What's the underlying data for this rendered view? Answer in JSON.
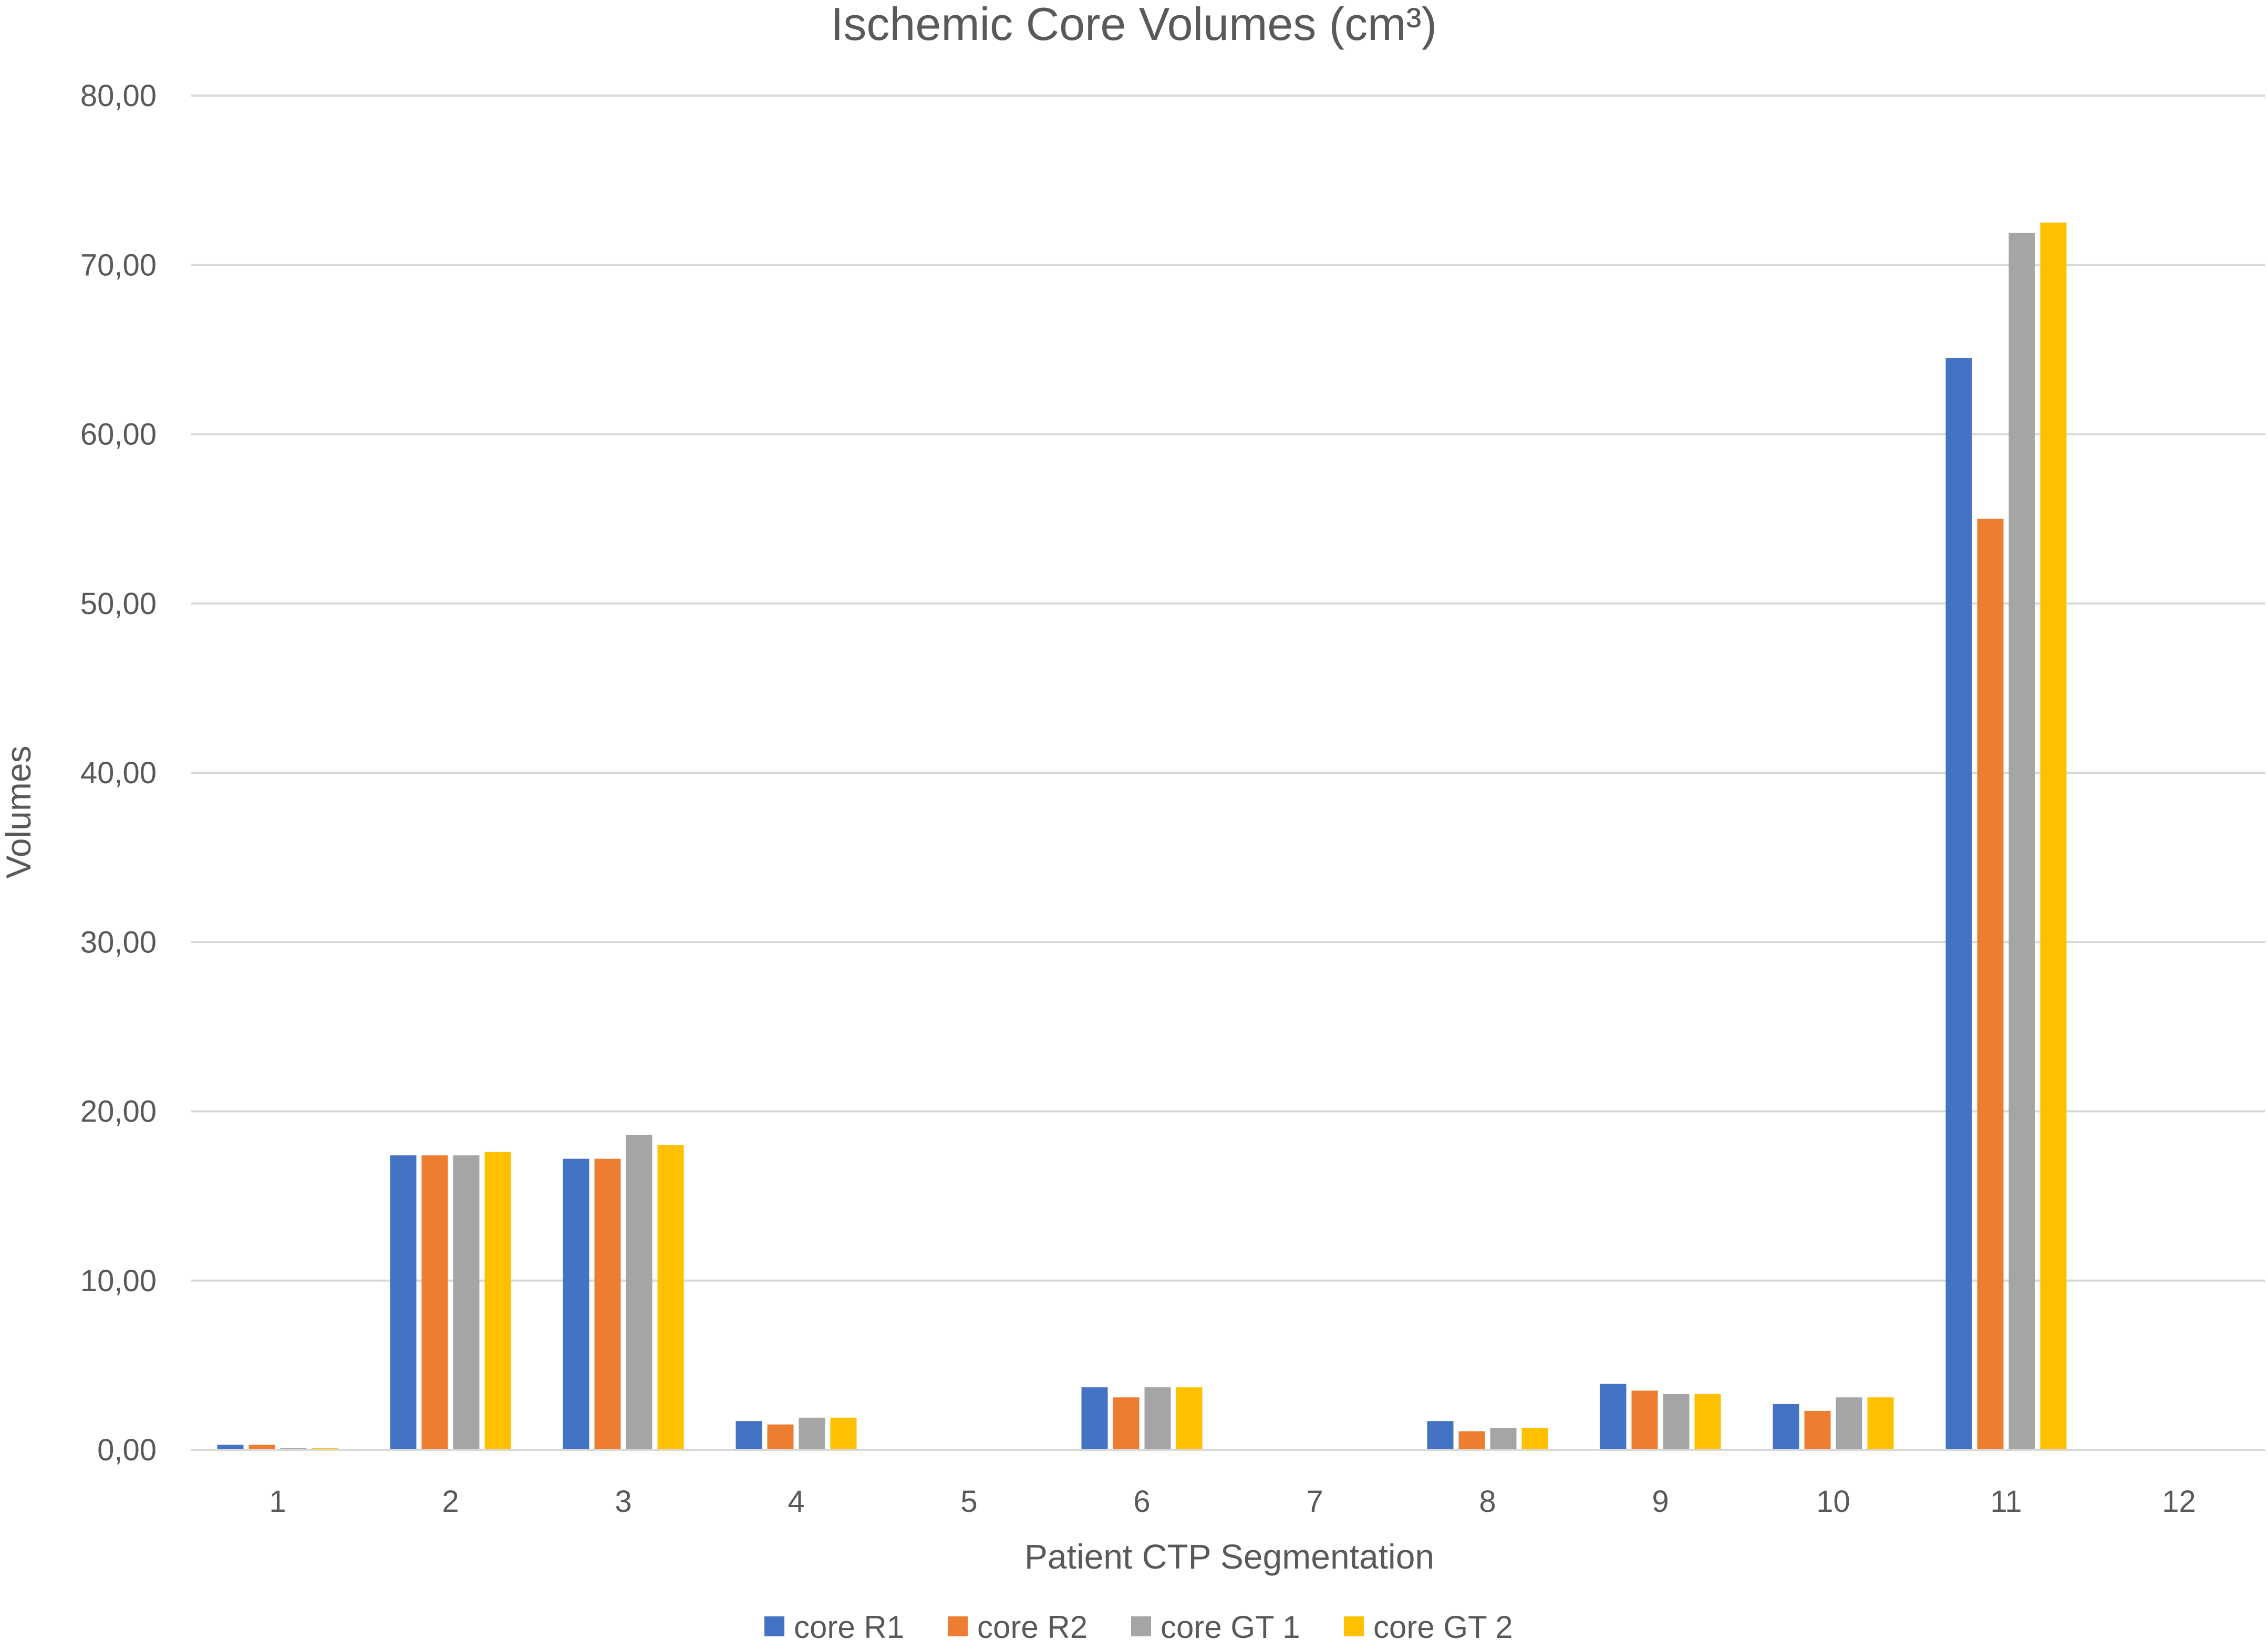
{
  "chart_data": {
    "type": "bar",
    "title": "Ischemic Core Volumes (cm³)",
    "xlabel": "Patient CTP Segmentation",
    "ylabel": "Volumes",
    "ylim": [
      0,
      80
    ],
    "yticks": [
      0,
      10,
      20,
      30,
      40,
      50,
      60,
      70,
      80
    ],
    "ytick_labels": [
      "0,00",
      "10,00",
      "20,00",
      "30,00",
      "40,00",
      "50,00",
      "60,00",
      "70,00",
      "80,00"
    ],
    "categories": [
      "1",
      "2",
      "3",
      "4",
      "5",
      "6",
      "7",
      "8",
      "9",
      "10",
      "11",
      "12"
    ],
    "grid": true,
    "legend_position": "bottom",
    "series": [
      {
        "name": "core R1",
        "color": "#4472C4",
        "values": [
          0.3,
          17.4,
          17.2,
          1.7,
          0,
          3.7,
          0,
          1.7,
          3.9,
          2.7,
          64.5,
          0
        ]
      },
      {
        "name": "core R2",
        "color": "#ED7D31",
        "values": [
          0.3,
          17.4,
          17.2,
          1.5,
          0,
          3.1,
          0,
          1.1,
          3.5,
          2.3,
          55.0,
          0
        ]
      },
      {
        "name": "core GT 1",
        "color": "#A5A5A5",
        "values": [
          0.1,
          17.4,
          18.6,
          1.9,
          0,
          3.7,
          0,
          1.3,
          3.3,
          3.1,
          71.9,
          0
        ]
      },
      {
        "name": "core GT 2",
        "color": "#FFC000",
        "values": [
          0.1,
          17.6,
          18.0,
          1.9,
          0,
          3.7,
          0,
          1.3,
          3.3,
          3.1,
          72.5,
          0
        ]
      }
    ]
  }
}
